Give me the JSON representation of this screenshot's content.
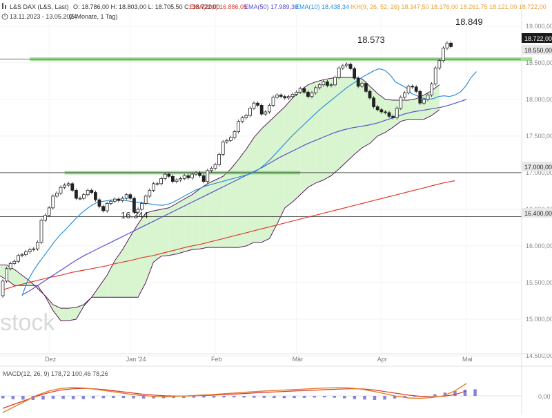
{
  "header": {
    "instrument": "L&S DAX (L&S, Last)",
    "ohlc": "O: 18.786,00  H: 18.803,00  L: 18.705,50  C: 18.722,00",
    "period": "13.11.2023 - 13.05.2024",
    "interval": "(6 Monate, 1 Tag)",
    "ema200": "EMA(200)  16.886,05",
    "ema50": "EMA(50)  17.989,30",
    "ema10": "EMA(10)  18.438,34",
    "ikh": "IKH(9, 26, 52, 26)  18.347,50  18.176,00  18.261,75  18.121,00  18.722,00"
  },
  "watermark": "stock",
  "macd_label": "MACD(12, 26, 9)  178,72  100,46  78,26",
  "annotations": {
    "high_feb": "18.573",
    "high_may": "18.849",
    "low_jan": "16.344"
  },
  "price_badges": [
    "18.722,00",
    "18.550,00",
    "17.000,00",
    "16.400,00"
  ],
  "colors": {
    "ema200": "#e03a2f",
    "ema50": "#5a4fcf",
    "ema10": "#2c8fd8",
    "ikh": "#e8a13c",
    "cloud_bull": "#d8f5d0",
    "cloud_bear": "#f7d6d8",
    "support_green": "#7bd66b",
    "macd": "#e67e22",
    "signal": "#d9342b",
    "hist": "#6f6fd8"
  },
  "chart_data": {
    "type": "candlestick",
    "y_axis_ticks": [
      "19.000,00",
      "18.500,00",
      "18.000,00",
      "17.500,00",
      "17.000,00",
      "16.500,00",
      "16.000,00",
      "15.500,00",
      "15.000,00",
      "14.500,00"
    ],
    "x_axis_labels": [
      "Dez",
      "Jan '24",
      "Feb",
      "Mär",
      "Apr",
      "Mai"
    ],
    "macd_axis_ticks": [
      "0,00"
    ],
    "ylim": [
      14500,
      19150
    ],
    "horizontal_levels": [
      18550,
      17000,
      16400
    ],
    "support_zones": [
      {
        "level": 18550,
        "from": 7,
        "to": 137
      },
      {
        "level": 17000,
        "from": 16,
        "to": 77
      }
    ],
    "candles_x_offset": -7,
    "close": [
      15320,
      15520,
      15690,
      15760,
      15790,
      15870,
      15880,
      15920,
      15950,
      15960,
      16050,
      16350,
      16420,
      16520,
      16680,
      16720,
      16800,
      16830,
      16850,
      16760,
      16650,
      16650,
      16700,
      16760,
      16730,
      16630,
      16540,
      16480,
      16580,
      16610,
      16640,
      16620,
      16650,
      16700,
      16650,
      16460,
      16500,
      16580,
      16680,
      16760,
      16850,
      16850,
      16920,
      16980,
      16950,
      16880,
      16900,
      16920,
      16960,
      16930,
      16980,
      17000,
      16960,
      16880,
      17030,
      17060,
      17110,
      17250,
      17420,
      17440,
      17480,
      17560,
      17700,
      17750,
      17780,
      17880,
      17950,
      17920,
      17800,
      17830,
      17920,
      18030,
      18060,
      18040,
      18020,
      18040,
      18070,
      18100,
      18150,
      18100,
      18040,
      18090,
      18160,
      18200,
      18240,
      18190,
      18200,
      18300,
      18430,
      18460,
      18480,
      18420,
      18290,
      18180,
      18220,
      18110,
      18020,
      17900,
      17860,
      17830,
      17820,
      17770,
      17750,
      17880,
      18030,
      18090,
      18180,
      18170,
      18110,
      17950,
      18000,
      18060,
      18210,
      18430,
      18530,
      18700,
      18770,
      18722
    ],
    "ema10": [
      15320,
      15520,
      15650,
      15760,
      15860,
      15960,
      16060,
      16150,
      16220,
      16300,
      16380,
      16450,
      16510,
      16560,
      16600,
      16610,
      16620,
      16630,
      16630,
      16620,
      16610,
      16600,
      16590,
      16580,
      16570,
      16560,
      16555,
      16570,
      16600,
      16640,
      16680,
      16720,
      16760,
      16790,
      16820,
      16840,
      16860,
      16880,
      16900,
      16920,
      16940,
      16960,
      16980,
      17010,
      17060,
      17120,
      17190,
      17270,
      17350,
      17430,
      17510,
      17580,
      17650,
      17720,
      17790,
      17860,
      17920,
      17980,
      18040,
      18100,
      18160,
      18210,
      18260,
      18310,
      18350,
      18390,
      18420,
      18400,
      18340,
      18240,
      18200,
      18160,
      18080,
      18050,
      18020,
      18000,
      18010,
      18040,
      18050,
      18040,
      18060,
      18100,
      18180,
      18300,
      18380
    ],
    "ema10_start": 5,
    "ema50": [
      15330,
      15400,
      15480,
      15560,
      15640,
      15720,
      15800,
      15870,
      15930,
      15990,
      16050,
      16110,
      16170,
      16230,
      16290,
      16350,
      16410,
      16470,
      16530,
      16590,
      16650,
      16710,
      16770,
      16830,
      16890,
      16950,
      17010,
      17070,
      17140,
      17210,
      17270,
      17330,
      17390,
      17440,
      17490,
      17540,
      17580,
      17610,
      17630,
      17650,
      17680,
      17720,
      17760,
      17800,
      17830,
      17850,
      17870,
      17890,
      17920,
      17960,
      18000
    ],
    "ema50_start": 5,
    "ema200": [
      15400,
      15450,
      15490,
      15530,
      15570,
      15600,
      15640,
      15670,
      15700,
      15730,
      15770,
      15800,
      15840,
      15870,
      15910,
      15950,
      15990,
      16020,
      16060,
      16100,
      16140,
      16180,
      16220,
      16260,
      16300,
      16340,
      16380,
      16420,
      16460,
      16500,
      16540,
      16580,
      16620,
      16660,
      16700,
      16740,
      16780,
      16820,
      16860,
      16890
    ],
    "ema200_start": 0,
    "cloud_upper": [
      15740,
      15740,
      15740,
      15680,
      15600,
      15520,
      15420,
      15320,
      15200,
      15150,
      15150,
      15160,
      15200,
      15300,
      15450,
      15600,
      15800,
      15950,
      16130,
      16300,
      16450,
      16480,
      16500,
      16520,
      16580,
      16640,
      16700,
      16780,
      16850,
      16900,
      16950,
      17050,
      17180,
      17320,
      17480,
      17600,
      17700,
      17800,
      17900,
      18020,
      18120,
      18200,
      18240,
      18270,
      18290,
      18300,
      18300,
      18300,
      18280,
      18180,
      18080,
      18000,
      17990,
      17990,
      17990,
      18010,
      18060,
      18120,
      18200
    ],
    "cloud_lower": [
      15620,
      15600,
      15540,
      15460,
      15460,
      15460,
      15460,
      15310,
      15120,
      14980,
      14980,
      15000,
      15180,
      15300,
      15300,
      15300,
      15300,
      15300,
      15300,
      15300,
      15500,
      15780,
      15860,
      15870,
      15890,
      15920,
      15950,
      15960,
      15980,
      15980,
      15980,
      15980,
      15980,
      16000,
      16050,
      16050,
      16100,
      16300,
      16520,
      16600,
      16700,
      16800,
      16860,
      16900,
      16960,
      17050,
      17150,
      17250,
      17340,
      17400,
      17500,
      17550,
      17620,
      17700,
      17730,
      17730,
      17730,
      17780,
      17860
    ],
    "cloud_start": -3,
    "macd": [
      -200,
      -130,
      -60,
      10,
      60,
      90,
      100,
      95,
      80,
      60,
      40,
      20,
      5,
      -5,
      -10,
      -5,
      0,
      8,
      15,
      25,
      35,
      45,
      55,
      62,
      68,
      75,
      82,
      90,
      95,
      98,
      95,
      80,
      55,
      25,
      -5,
      -25,
      -30,
      -20,
      0,
      60,
      150
    ],
    "signal": [
      -150,
      -100,
      -50,
      0,
      40,
      70,
      85,
      90,
      85,
      72,
      55,
      38,
      22,
      10,
      2,
      -2,
      -1,
      3,
      8,
      15,
      22,
      30,
      38,
      45,
      52,
      58,
      64,
      70,
      76,
      82,
      86,
      84,
      72,
      52,
      30,
      10,
      -5,
      -10,
      -5,
      15,
      60
    ],
    "hist": [
      -30,
      -40,
      -45,
      -50,
      -45,
      -35,
      -35,
      -40,
      -38,
      -30,
      -28,
      -25,
      -26,
      -30,
      -32,
      -30,
      -28,
      -26,
      -25,
      -22,
      -20,
      -21,
      -19,
      -18,
      -20,
      -22,
      -24,
      -26,
      -28,
      -26,
      -24,
      -20,
      -18,
      -22,
      -30,
      -38,
      -44,
      -50,
      -45,
      -32,
      -20,
      -10,
      0,
      20,
      40,
      60,
      75,
      80
    ]
  }
}
